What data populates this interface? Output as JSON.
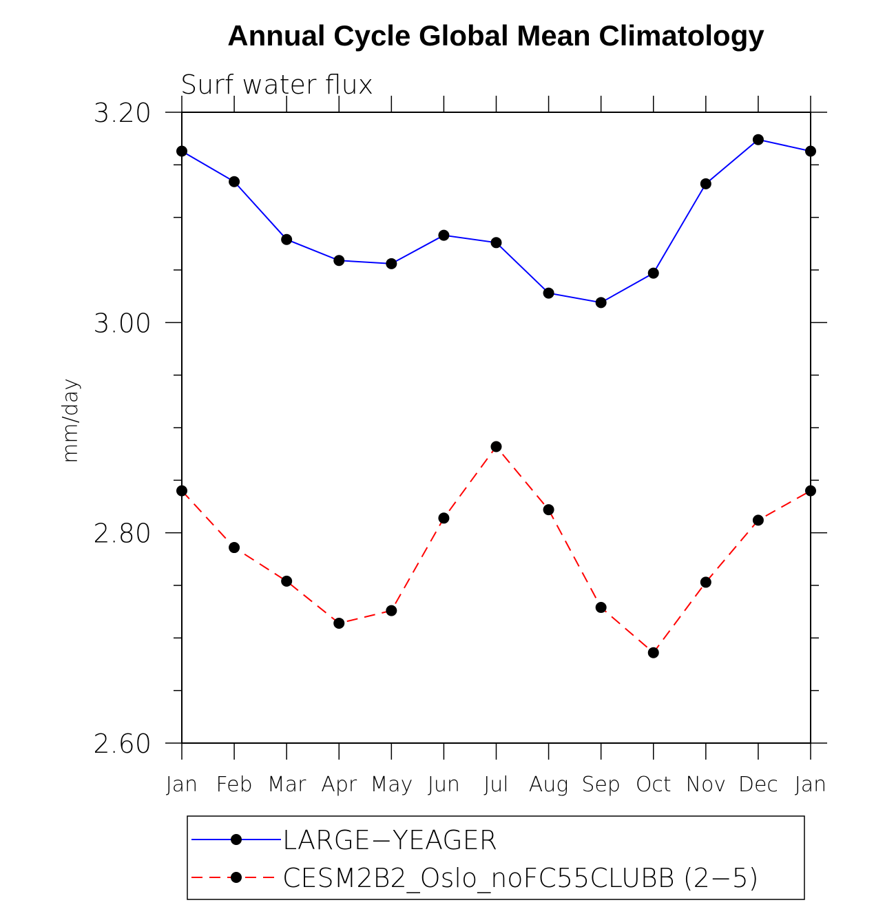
{
  "colors": {
    "background": "#ffffff",
    "axis": "#000000",
    "series_large_yeager": "#0000ff",
    "series_cesm": "#ff0000",
    "marker": "#000000"
  },
  "chart_data": {
    "type": "line",
    "title": "Annual Cycle Global Mean Climatology",
    "subtitle": "Surf water flux",
    "xlabel": "",
    "ylabel": "mm/day",
    "categories": [
      "Jan",
      "Feb",
      "Mar",
      "Apr",
      "May",
      "Jun",
      "Jul",
      "Aug",
      "Sep",
      "Oct",
      "Nov",
      "Dec",
      "Jan"
    ],
    "ylim": [
      2.6,
      3.2
    ],
    "yticks": [
      2.6,
      2.8,
      3.0,
      3.2
    ],
    "ytick_labels": [
      "2.60",
      "2.80",
      "3.00",
      "3.20"
    ],
    "grid": false,
    "legend_position": "bottom",
    "series": [
      {
        "name": "LARGE−YEAGER",
        "style": "solid",
        "color": "#0000ff",
        "marker": "filled-circle",
        "values": [
          3.163,
          3.134,
          3.079,
          3.059,
          3.056,
          3.083,
          3.076,
          3.028,
          3.019,
          3.047,
          3.132,
          3.174,
          3.163
        ]
      },
      {
        "name": "CESM2B2_Oslo_noFC55CLUBB (2−5)",
        "style": "dashed",
        "color": "#ff0000",
        "marker": "filled-circle",
        "values": [
          2.84,
          2.786,
          2.754,
          2.714,
          2.726,
          2.814,
          2.882,
          2.822,
          2.729,
          2.686,
          2.753,
          2.812,
          2.84
        ]
      }
    ]
  }
}
